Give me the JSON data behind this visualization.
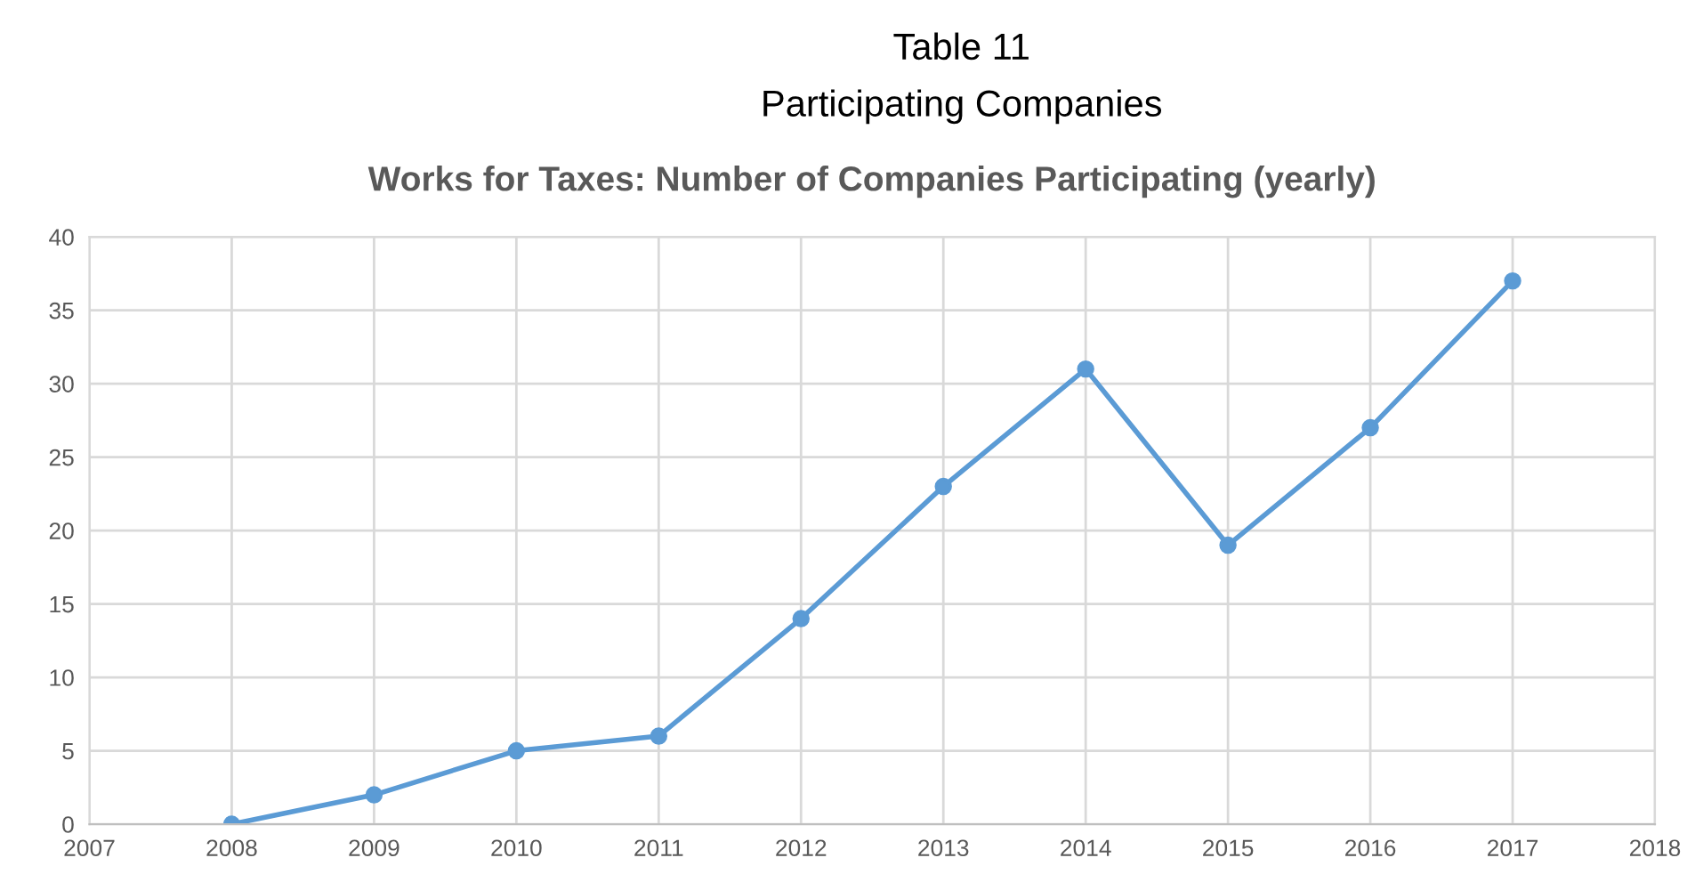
{
  "chart_data": {
    "type": "line",
    "title": "Works for Taxes: Number of Companies Participating (yearly)",
    "annotations": [
      "Table 11",
      "Participating Companies"
    ],
    "x": [
      2008,
      2009,
      2010,
      2011,
      2012,
      2013,
      2014,
      2015,
      2016,
      2017
    ],
    "series": [
      {
        "color": "#5b9bd5",
        "values": [
          0,
          2,
          5,
          6,
          14,
          23,
          31,
          19,
          27,
          37
        ]
      }
    ],
    "xlim": [
      2007,
      2018
    ],
    "xticks": [
      2007,
      2008,
      2009,
      2010,
      2011,
      2012,
      2013,
      2014,
      2015,
      2016,
      2017,
      2018
    ],
    "ylim": [
      0,
      40
    ],
    "yticks": [
      0,
      5,
      10,
      15,
      20,
      25,
      30,
      35,
      40
    ],
    "grid": true,
    "legend": false,
    "marker": "circle",
    "line_style": "solid"
  }
}
